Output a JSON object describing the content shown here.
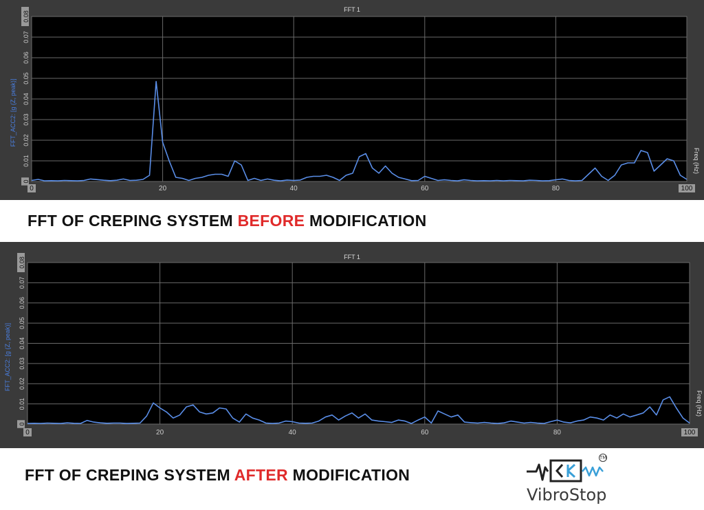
{
  "captions": {
    "before": {
      "prefix": "FFT OF CREPING SYSTEM ",
      "highlight": "BEFORE",
      "suffix": " MODIFICATION"
    },
    "after": {
      "prefix": "FFT OF CREPING SYSTEM ",
      "highlight": "AFTER",
      "suffix": " MODIFICATION"
    }
  },
  "logo": {
    "text": "VibroStop",
    "tm": "TM"
  },
  "colors": {
    "accent": "#e02a2a",
    "line": "#5a8ee8",
    "background": "#000000",
    "frame": "#3a3a3a"
  },
  "chart_data": [
    {
      "type": "line",
      "title": "FFT 1",
      "ylabel": "FFT_ACC2: [g (Z, peak)]",
      "xlabel": "Freq (Hz)",
      "xlim": [
        0,
        100
      ],
      "ylim": [
        0,
        0.08
      ],
      "xticks": [
        "0",
        "20",
        "40",
        "60",
        "80",
        "100"
      ],
      "yticks": [
        "0",
        "0.01",
        "0.02",
        "0.03",
        "0.04",
        "0.05",
        "0.06",
        "0.07",
        "0.08"
      ],
      "grid": true,
      "series": [
        {
          "x": [
            0,
            1,
            2,
            3,
            4,
            5,
            6,
            7,
            8,
            9,
            10,
            11,
            12,
            13,
            14,
            15,
            16,
            17,
            18,
            19,
            20,
            21,
            22,
            23,
            24,
            25,
            26,
            27,
            28,
            29,
            30,
            31,
            32,
            33,
            34,
            35,
            36,
            37,
            38,
            39,
            40,
            41,
            42,
            43,
            44,
            45,
            46,
            47,
            48,
            49,
            50,
            51,
            52,
            53,
            54,
            55,
            56,
            57,
            58,
            59,
            60,
            61,
            62,
            63,
            64,
            65,
            66,
            67,
            68,
            69,
            70,
            71,
            72,
            73,
            74,
            75,
            76,
            77,
            78,
            79,
            80,
            81,
            82,
            83,
            84,
            85,
            86,
            87,
            88,
            89,
            90,
            91,
            92,
            93,
            94,
            95,
            96,
            97,
            98,
            99,
            100
          ],
          "y": [
            0.0005,
            0.001,
            0.0003,
            0.0004,
            0.0003,
            0.0005,
            0.0004,
            0.0003,
            0.0005,
            0.0012,
            0.0009,
            0.0006,
            0.0004,
            0.0006,
            0.0012,
            0.0005,
            0.0006,
            0.001,
            0.003,
            0.0485,
            0.019,
            0.01,
            0.002,
            0.0015,
            0.0005,
            0.0015,
            0.002,
            0.003,
            0.0035,
            0.0035,
            0.0025,
            0.01,
            0.008,
            0.0005,
            0.0015,
            0.0005,
            0.0012,
            0.0006,
            0.0003,
            0.0007,
            0.0005,
            0.0007,
            0.002,
            0.0025,
            0.0025,
            0.003,
            0.002,
            0.0005,
            0.003,
            0.004,
            0.012,
            0.0135,
            0.0065,
            0.004,
            0.0075,
            0.004,
            0.002,
            0.0012,
            0.0004,
            0.0005,
            0.0025,
            0.0015,
            0.0005,
            0.0008,
            0.0005,
            0.0003,
            0.0008,
            0.0005,
            0.0003,
            0.0004,
            0.0003,
            0.0005,
            0.0003,
            0.0005,
            0.0004,
            0.0003,
            0.0006,
            0.0005,
            0.0003,
            0.0004,
            0.0008,
            0.0012,
            0.0005,
            0.0003,
            0.0005,
            0.0035,
            0.0065,
            0.0025,
            0.0005,
            0.003,
            0.008,
            0.009,
            0.009,
            0.015,
            0.014,
            0.005,
            0.008,
            0.011,
            0.01,
            0.003,
            0.001
          ]
        }
      ]
    },
    {
      "type": "line",
      "title": "FFT 1",
      "ylabel": "FFT_ACC2: [g (Z, peak)]",
      "xlabel": "Freq (Hz)",
      "xlim": [
        0,
        100
      ],
      "ylim": [
        0,
        0.08
      ],
      "xticks": [
        "0",
        "20",
        "40",
        "60",
        "80",
        "100"
      ],
      "yticks": [
        "0",
        "0.01",
        "0.02",
        "0.03",
        "0.04",
        "0.05",
        "0.06",
        "0.07",
        "0.08"
      ],
      "grid": true,
      "series": [
        {
          "x": [
            0,
            1,
            2,
            3,
            4,
            5,
            6,
            7,
            8,
            9,
            10,
            11,
            12,
            13,
            14,
            15,
            16,
            17,
            18,
            19,
            20,
            21,
            22,
            23,
            24,
            25,
            26,
            27,
            28,
            29,
            30,
            31,
            32,
            33,
            34,
            35,
            36,
            37,
            38,
            39,
            40,
            41,
            42,
            43,
            44,
            45,
            46,
            47,
            48,
            49,
            50,
            51,
            52,
            53,
            54,
            55,
            56,
            57,
            58,
            59,
            60,
            61,
            62,
            63,
            64,
            65,
            66,
            67,
            68,
            69,
            70,
            71,
            72,
            73,
            74,
            75,
            76,
            77,
            78,
            79,
            80,
            81,
            82,
            83,
            84,
            85,
            86,
            87,
            88,
            89,
            90,
            91,
            92,
            93,
            94,
            95,
            96,
            97,
            98,
            99,
            100
          ],
          "y": [
            0.0003,
            0.0004,
            0.0003,
            0.0005,
            0.0004,
            0.0003,
            0.0006,
            0.0004,
            0.0003,
            0.0018,
            0.001,
            0.0006,
            0.0004,
            0.0005,
            0.0005,
            0.0003,
            0.0004,
            0.0005,
            0.004,
            0.0105,
            0.008,
            0.006,
            0.003,
            0.0045,
            0.0085,
            0.0095,
            0.006,
            0.005,
            0.0055,
            0.008,
            0.0075,
            0.003,
            0.001,
            0.005,
            0.003,
            0.002,
            0.0005,
            0.0003,
            0.0005,
            0.0015,
            0.0012,
            0.0005,
            0.0004,
            0.0005,
            0.0015,
            0.0035,
            0.0045,
            0.002,
            0.004,
            0.0055,
            0.003,
            0.005,
            0.002,
            0.0015,
            0.0012,
            0.0008,
            0.002,
            0.0015,
            0.0003,
            0.002,
            0.0035,
            0.0005,
            0.0065,
            0.005,
            0.0035,
            0.0045,
            0.001,
            0.0007,
            0.0005,
            0.0008,
            0.0005,
            0.0003,
            0.0006,
            0.0015,
            0.001,
            0.0005,
            0.0008,
            0.0005,
            0.0003,
            0.0012,
            0.002,
            0.001,
            0.0006,
            0.0015,
            0.002,
            0.0035,
            0.003,
            0.002,
            0.0045,
            0.003,
            0.005,
            0.0035,
            0.0045,
            0.0055,
            0.0085,
            0.0045,
            0.012,
            0.0135,
            0.008,
            0.003,
            0.0005
          ]
        }
      ]
    }
  ]
}
